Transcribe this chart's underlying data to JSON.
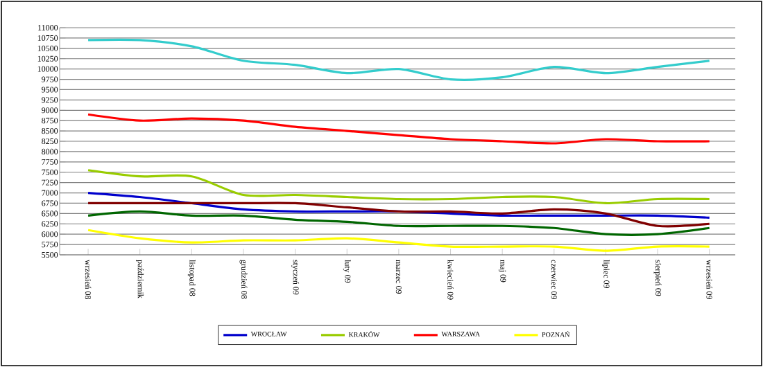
{
  "chart_data": {
    "type": "line",
    "categories": [
      "wrzesień 08",
      "październik",
      "listopad 08",
      "grudzień 08",
      "styczeń 09",
      "luty 09",
      "marzec 09",
      "kwiecień 09",
      "maj 09",
      "czerwiec 09",
      "lipiec 09",
      "sierpień 09",
      "wrzesień 09"
    ],
    "series": [
      {
        "name": "WROCŁAW",
        "color": "#0000cc",
        "values": [
          7000,
          6900,
          6750,
          6600,
          6550,
          6550,
          6550,
          6500,
          6450,
          6450,
          6450,
          6450,
          6400
        ]
      },
      {
        "name": "KRAKÓW",
        "color": "#99cc00",
        "values": [
          7550,
          7400,
          7400,
          6950,
          6950,
          6900,
          6850,
          6850,
          6900,
          6900,
          6750,
          6850,
          6850
        ]
      },
      {
        "name": "WARSZAWA",
        "color": "#ff0000",
        "values": [
          8900,
          8750,
          8800,
          8750,
          8600,
          8500,
          8400,
          8300,
          8250,
          8200,
          8300,
          8250,
          8250
        ]
      },
      {
        "name": "POZNAŃ",
        "color": "#ffff00",
        "values": [
          6100,
          5900,
          5800,
          5850,
          5850,
          5900,
          5800,
          5700,
          5700,
          5700,
          5600,
          5700,
          5700
        ]
      },
      {
        "color": "#33cccc",
        "values": [
          10700,
          10700,
          10550,
          10200,
          10100,
          9900,
          10000,
          9750,
          9800,
          10050,
          9900,
          10050,
          10200
        ]
      },
      {
        "color": "#800000",
        "values": [
          6750,
          6750,
          6750,
          6750,
          6750,
          6650,
          6550,
          6550,
          6500,
          6600,
          6500,
          6200,
          6250
        ]
      },
      {
        "color": "#006600",
        "values": [
          6450,
          6550,
          6450,
          6450,
          6350,
          6300,
          6200,
          6200,
          6200,
          6150,
          6000,
          6000,
          6150
        ]
      }
    ],
    "ylim": [
      5500,
      11000
    ],
    "yticks": [
      5500,
      5750,
      6000,
      6250,
      6500,
      6750,
      7000,
      7250,
      7500,
      7750,
      8000,
      8250,
      8500,
      8750,
      9000,
      9250,
      9500,
      9750,
      10000,
      10250,
      10500,
      10750,
      11000
    ],
    "grid": "y",
    "legend": "bottom",
    "marker": "none",
    "line_style": "solid"
  }
}
